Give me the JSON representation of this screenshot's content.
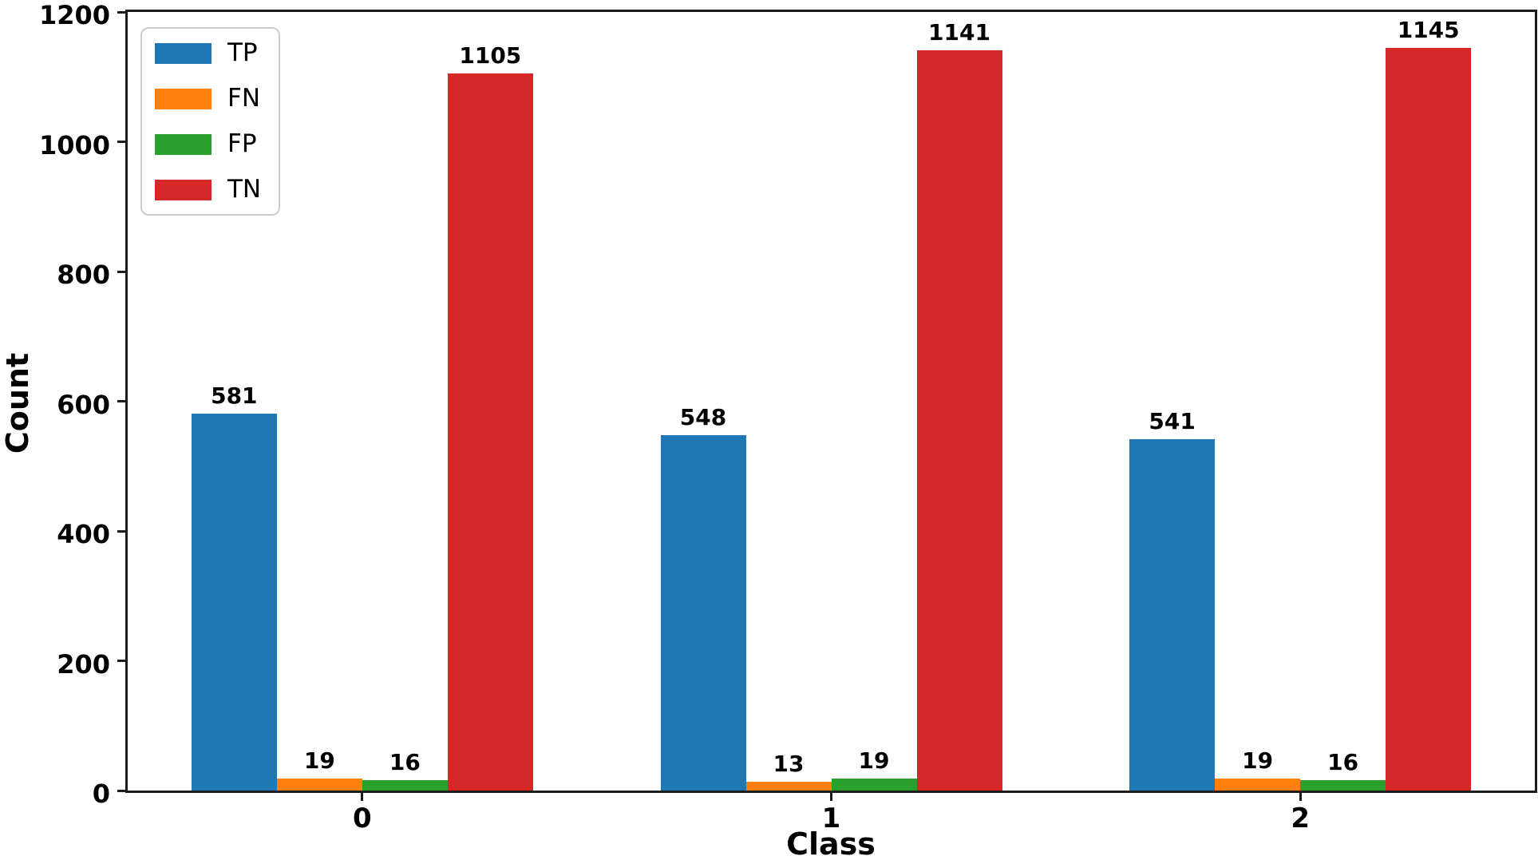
{
  "chart_data": {
    "type": "bar",
    "title": "",
    "xlabel": "Class",
    "ylabel": "Count",
    "categories": [
      "0",
      "1",
      "2"
    ],
    "series": [
      {
        "name": "TP",
        "color": "#1f77b4",
        "values": [
          581,
          548,
          541
        ]
      },
      {
        "name": "FN",
        "color": "#ff7f0e",
        "values": [
          19,
          13,
          19
        ]
      },
      {
        "name": "FP",
        "color": "#2ca02c",
        "values": [
          16,
          19,
          16
        ]
      },
      {
        "name": "TN",
        "color": "#d62728",
        "values": [
          1105,
          1141,
          1145
        ]
      }
    ],
    "ylim": [
      0,
      1200
    ],
    "yticks": [
      0,
      200,
      400,
      600,
      800,
      1000,
      1200
    ],
    "grid": false,
    "legend_position": "upper left",
    "bar_value_labels": true,
    "spine_color": "#1c1c1c",
    "background_color": "#ffffff"
  }
}
